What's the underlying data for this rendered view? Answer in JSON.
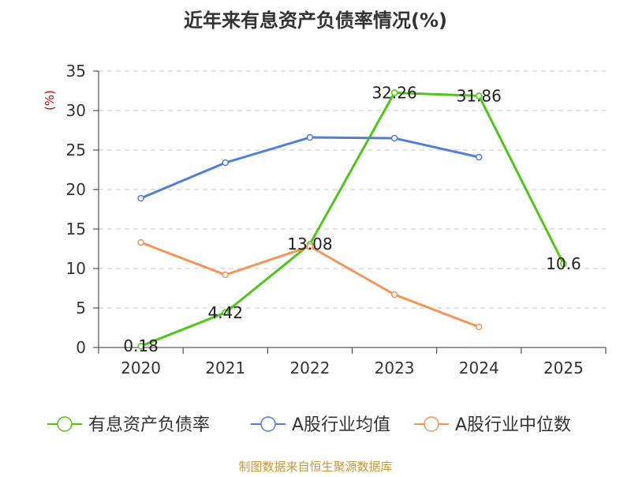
{
  "chart_data": {
    "type": "line",
    "title": "近年来有息资产负债率情况(%)",
    "y_unit_label": "(%)",
    "categories": [
      "2020",
      "2021",
      "2022",
      "2023",
      "2024",
      "2025"
    ],
    "ylim": [
      0,
      35
    ],
    "y_ticks": [
      0,
      5,
      10,
      15,
      20,
      25,
      30,
      35
    ],
    "grid": true,
    "legend_position": "bottom",
    "series": [
      {
        "name": "有息资产负债率",
        "color": "#52c41a",
        "values": [
          0.18,
          4.42,
          13.08,
          32.26,
          31.86,
          10.6
        ],
        "labels": [
          "0.18",
          "4.42",
          "13.08",
          "32.26",
          "31.86",
          "10.6"
        ]
      },
      {
        "name": "A股行业均值",
        "color": "#4f7fd8",
        "values": [
          18.9,
          23.4,
          26.6,
          26.5,
          24.1,
          null
        ],
        "labels": null
      },
      {
        "name": "A股行业中位数",
        "color": "#f5945a",
        "values": [
          13.3,
          9.2,
          12.8,
          6.7,
          2.6,
          null
        ],
        "labels": null
      }
    ]
  },
  "source_text": "制图数据来自恒生聚源数据库"
}
